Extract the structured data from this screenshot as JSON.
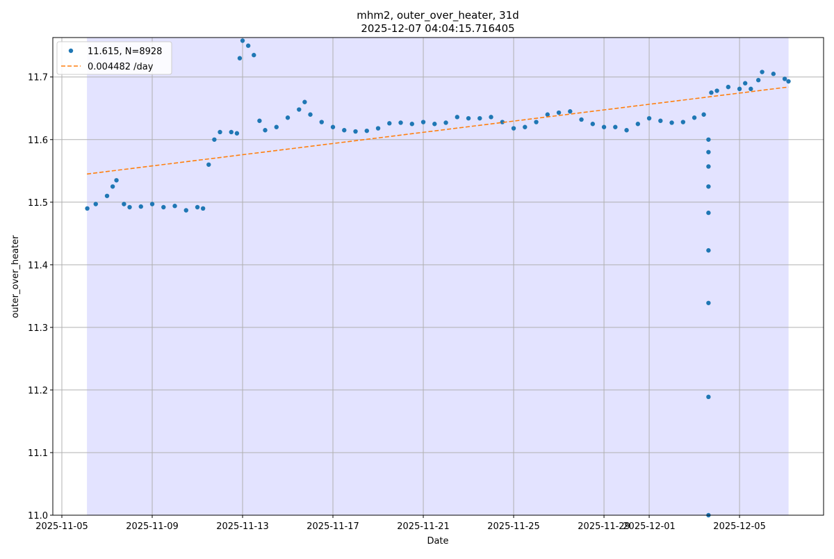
{
  "chart_data": {
    "type": "scatter",
    "title": "mhm2, outer_over_heater, 31d",
    "subtitle": "2025-12-07 04:04:15.716405",
    "x_label": "Date",
    "y_label": "outer_over_heater",
    "xlim": [
      "2025-11-04T14:24",
      "2025-12-08T17:17"
    ],
    "xticks": [
      "2025-11-05",
      "2025-11-09",
      "2025-11-13",
      "2025-11-17",
      "2025-11-21",
      "2025-11-25",
      "2025-11-29",
      "2025-12-01",
      "2025-12-05"
    ],
    "ylim": [
      11.0,
      11.763
    ],
    "yticks": [
      {
        "value": 11,
        "label": "11.0"
      },
      11.1,
      11.2,
      11.3,
      11.4,
      11.5,
      11.6,
      11.7
    ],
    "grid": true,
    "legend": "upper left",
    "shaded_span": [
      "2025-11-06T02:40",
      "2025-12-07T04:04"
    ],
    "shade_color": "#e3e3ff",
    "series": [
      {
        "name": "11.615, N=8928",
        "color": "#1f77b4",
        "type": "scatter",
        "x": [
          "2025-11-06T03:00",
          "2025-11-06T12:00",
          "2025-11-07T00:00",
          "2025-11-07T06:00",
          "2025-11-07T10:00",
          "2025-11-07T18:00",
          "2025-11-08T00:00",
          "2025-11-08T12:00",
          "2025-11-09T00:00",
          "2025-11-09T12:00",
          "2025-11-10T00:00",
          "2025-11-10T12:00",
          "2025-11-11T00:00",
          "2025-11-11T06:00",
          "2025-11-11T12:00",
          "2025-11-11T18:00",
          "2025-11-12T00:00",
          "2025-11-12T12:00",
          "2025-11-12T18:00",
          "2025-11-12T21:00",
          "2025-11-13T00:00",
          "2025-11-13T06:00",
          "2025-11-13T12:00",
          "2025-11-13T18:00",
          "2025-11-14T00:00",
          "2025-11-14T12:00",
          "2025-11-15T00:00",
          "2025-11-15T12:00",
          "2025-11-15T18:00",
          "2025-11-16T00:00",
          "2025-11-16T12:00",
          "2025-11-17T00:00",
          "2025-11-17T12:00",
          "2025-11-18T00:00",
          "2025-11-18T12:00",
          "2025-11-19T00:00",
          "2025-11-19T12:00",
          "2025-11-20T00:00",
          "2025-11-20T12:00",
          "2025-11-21T00:00",
          "2025-11-21T12:00",
          "2025-11-22T00:00",
          "2025-11-22T12:00",
          "2025-11-23T00:00",
          "2025-11-23T12:00",
          "2025-11-24T00:00",
          "2025-11-24T12:00",
          "2025-11-25T00:00",
          "2025-11-25T12:00",
          "2025-11-26T00:00",
          "2025-11-26T12:00",
          "2025-11-27T00:00",
          "2025-11-27T12:00",
          "2025-11-28T00:00",
          "2025-11-28T12:00",
          "2025-11-29T00:00",
          "2025-11-29T12:00",
          "2025-11-30T00:00",
          "2025-11-30T12:00",
          "2025-12-01T00:00",
          "2025-12-01T12:00",
          "2025-12-02T00:00",
          "2025-12-02T12:00",
          "2025-12-03T00:00",
          "2025-12-03T10:00",
          "2025-12-03T15:00",
          "2025-12-03T15:00",
          "2025-12-03T15:00",
          "2025-12-03T15:00",
          "2025-12-03T15:00",
          "2025-12-03T15:00",
          "2025-12-03T15:00",
          "2025-12-03T15:00",
          "2025-12-03T15:00",
          "2025-12-03T18:00",
          "2025-12-04T00:00",
          "2025-12-04T12:00",
          "2025-12-05T00:00",
          "2025-12-05T06:00",
          "2025-12-05T12:00",
          "2025-12-05T20:00",
          "2025-12-06T00:00",
          "2025-12-06T12:00",
          "2025-12-07T00:00",
          "2025-12-07T04:00"
        ],
        "values": [
          11.49,
          11.497,
          11.51,
          11.525,
          11.535,
          11.497,
          11.492,
          11.493,
          11.497,
          11.492,
          11.494,
          11.487,
          11.492,
          11.49,
          11.56,
          11.6,
          11.612,
          11.612,
          11.61,
          11.73,
          11.758,
          11.75,
          11.735,
          11.63,
          11.615,
          11.62,
          11.635,
          11.648,
          11.66,
          11.64,
          11.628,
          11.62,
          11.615,
          11.613,
          11.614,
          11.618,
          11.626,
          11.627,
          11.625,
          11.628,
          11.625,
          11.627,
          11.636,
          11.634,
          11.634,
          11.636,
          11.628,
          11.618,
          11.62,
          11.628,
          11.64,
          11.643,
          11.645,
          11.632,
          11.625,
          11.62,
          11.62,
          11.615,
          11.625,
          11.634,
          11.63,
          11.627,
          11.628,
          11.635,
          11.64,
          11.6,
          11.58,
          11.557,
          11.525,
          11.483,
          11.423,
          11.339,
          11.189,
          11.0,
          11.675,
          11.678,
          11.684,
          11.681,
          11.69,
          11.681,
          11.695,
          11.708,
          11.705,
          11.697,
          11.693
        ]
      },
      {
        "name": "0.004482 /day",
        "color": "#ff7f0e",
        "type": "line",
        "x": [
          "2025-11-06T02:40",
          "2025-12-07T04:04"
        ],
        "values": [
          11.545,
          11.684
        ]
      }
    ]
  }
}
